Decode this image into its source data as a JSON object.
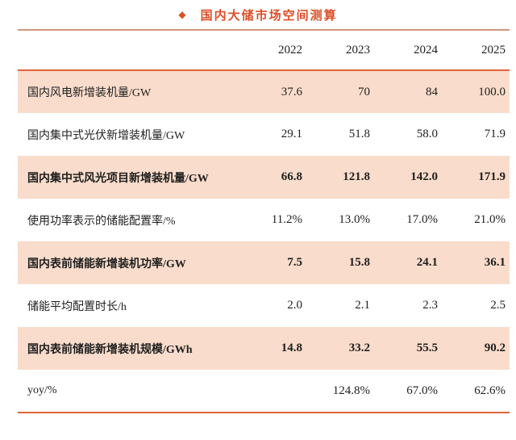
{
  "title": {
    "marker": "◆",
    "text": "国内大储市场空间测算"
  },
  "table": {
    "year_headers": [
      "2022",
      "2023",
      "2024",
      "2025"
    ],
    "rows": [
      {
        "label": "国内风电新增装机量/GW",
        "values": [
          "37.6",
          "70",
          "84",
          "100.0"
        ],
        "bold": false,
        "shaded": true
      },
      {
        "label": "国内集中式光伏新增装机量/GW",
        "values": [
          "29.1",
          "51.8",
          "58.0",
          "71.9"
        ],
        "bold": false,
        "shaded": false
      },
      {
        "label": "国内集中式风光项目新增装机量/GW",
        "values": [
          "66.8",
          "121.8",
          "142.0",
          "171.9"
        ],
        "bold": true,
        "shaded": true
      },
      {
        "label": "使用功率表示的储能配置率/%",
        "values": [
          "11.2%",
          "13.0%",
          "17.0%",
          "21.0%"
        ],
        "bold": false,
        "shaded": false
      },
      {
        "label": "国内表前储能新增装机功率/GW",
        "values": [
          "7.5",
          "15.8",
          "24.1",
          "36.1"
        ],
        "bold": true,
        "shaded": true
      },
      {
        "label": "储能平均配置时长/h",
        "values": [
          "2.0",
          "2.1",
          "2.3",
          "2.5"
        ],
        "bold": false,
        "shaded": false
      },
      {
        "label": "国内表前储能新增装机规模/GWh",
        "values": [
          "14.8",
          "33.2",
          "55.5",
          "90.2"
        ],
        "bold": true,
        "shaded": true
      },
      {
        "label": "yoy/%",
        "values": [
          "",
          "124.8%",
          "67.0%",
          "62.6%"
        ],
        "bold": false,
        "shaded": false
      }
    ]
  },
  "chart_data": {
    "type": "table",
    "title": "国内大储市场空间测算",
    "columns": [
      "",
      "2022",
      "2023",
      "2024",
      "2025"
    ],
    "rows": [
      [
        "国内风电新增装机量/GW",
        37.6,
        70,
        84,
        100.0
      ],
      [
        "国内集中式光伏新增装机量/GW",
        29.1,
        51.8,
        58.0,
        71.9
      ],
      [
        "国内集中式风光项目新增装机量/GW",
        66.8,
        121.8,
        142.0,
        171.9
      ],
      [
        "使用功率表示的储能配置率/%",
        "11.2%",
        "13.0%",
        "17.0%",
        "21.0%"
      ],
      [
        "国内表前储能新增装机功率/GW",
        7.5,
        15.8,
        24.1,
        36.1
      ],
      [
        "储能平均配置时长/h",
        2.0,
        2.1,
        2.3,
        2.5
      ],
      [
        "国内表前储能新增装机规模/GWh",
        14.8,
        33.2,
        55.5,
        90.2
      ],
      [
        "yoy/%",
        null,
        "124.8%",
        "67.0%",
        "62.6%"
      ]
    ],
    "highlighted_rows": [
      2,
      4,
      6
    ],
    "layout": "alternating shaded rows, top/bottom orange rules, right-aligned numeric columns"
  },
  "colors": {
    "title_red": "#dd4f27",
    "accent_orange": "#e26439",
    "rule_muted": "#d4947a",
    "row_shade": "#f9dccb",
    "text": "#1f1f1f"
  }
}
